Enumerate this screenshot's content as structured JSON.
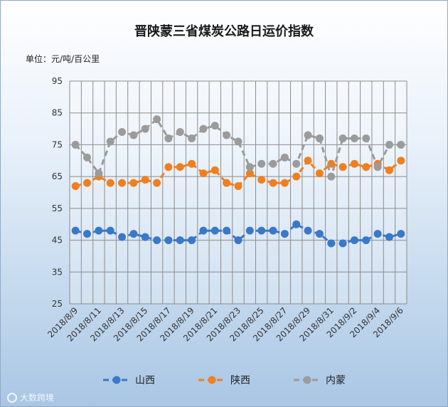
{
  "chart_data": {
    "type": "line",
    "title": "晋陕蒙三省煤炭公路日运价指数",
    "unit_label": "单位：元/吨/百公里",
    "ylim": [
      25,
      95
    ],
    "yticks": [
      25,
      35,
      45,
      55,
      65,
      75,
      85,
      95
    ],
    "grid": true,
    "legend_position": "bottom",
    "x_tick_labels": [
      "2018/8/9",
      "2018/8/11",
      "2018/8/13",
      "2018/8/15",
      "2018/8/17",
      "2018/8/19",
      "2018/8/21",
      "2018/8/23",
      "2018/8/25",
      "2018/8/27",
      "2018/8/29",
      "2018/8/31",
      "2018/9/2",
      "2018/9/4",
      "2018/9/6"
    ],
    "x": [
      "2018/8/9",
      "2018/8/10",
      "2018/8/11",
      "2018/8/12",
      "2018/8/13",
      "2018/8/14",
      "2018/8/15",
      "2018/8/16",
      "2018/8/17",
      "2018/8/18",
      "2018/8/19",
      "2018/8/20",
      "2018/8/21",
      "2018/8/22",
      "2018/8/23",
      "2018/8/24",
      "2018/8/25",
      "2018/8/26",
      "2018/8/27",
      "2018/8/28",
      "2018/8/29",
      "2018/8/30",
      "2018/8/31",
      "2018/9/1",
      "2018/9/2",
      "2018/9/3",
      "2018/9/4",
      "2018/9/5",
      "2018/9/6"
    ],
    "series": [
      {
        "name": "山西",
        "color": "#3a78c9",
        "values": [
          48,
          47,
          48,
          48,
          46,
          47,
          46,
          45,
          45,
          45,
          45,
          48,
          48,
          48,
          45,
          48,
          48,
          48,
          47,
          50,
          48,
          47,
          44,
          44,
          45,
          45,
          47,
          46,
          47
        ]
      },
      {
        "name": "陕西",
        "color": "#f07f1f",
        "values": [
          62,
          63,
          65,
          63,
          63,
          63,
          64,
          63,
          68,
          68,
          69,
          66,
          67,
          63,
          62,
          66,
          64,
          63,
          63,
          65,
          70,
          66,
          69,
          68,
          69,
          68,
          69,
          67,
          70
        ]
      },
      {
        "name": "内蒙",
        "color": "#9b9b9b",
        "values": [
          75,
          71,
          66,
          76,
          79,
          78,
          80,
          83,
          77,
          79,
          77,
          80,
          81,
          78,
          76,
          68,
          69,
          69,
          71,
          69,
          78,
          77,
          65,
          77,
          77,
          77,
          68,
          75,
          75
        ]
      }
    ]
  },
  "watermark": "大数跨境"
}
